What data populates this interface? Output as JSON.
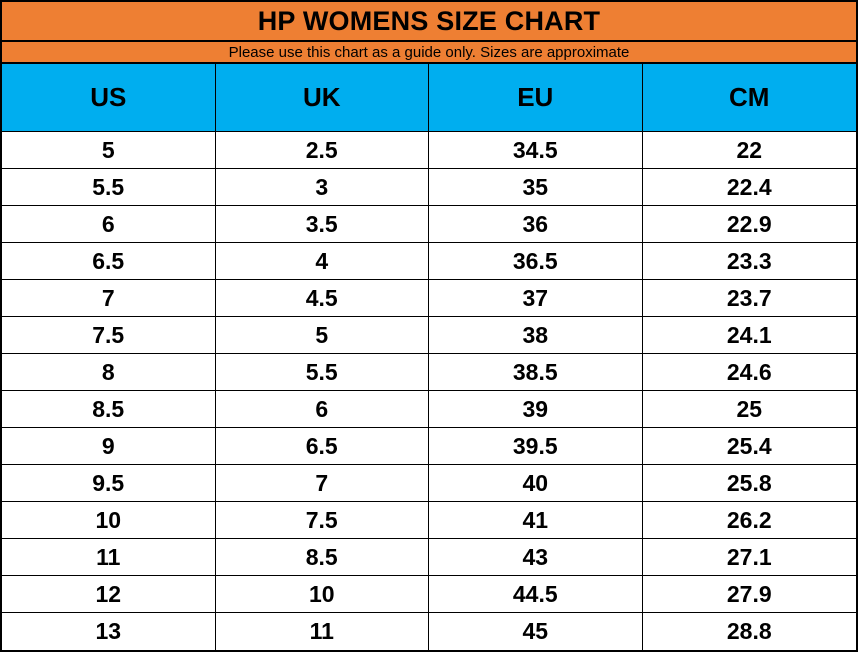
{
  "title": "HP WOMENS SIZE CHART",
  "subtitle": "Please use this chart as a guide only. Sizes are approximate",
  "colors": {
    "title_band_orange": "#EE7F33",
    "header_blue": "#00AEEF",
    "row_background": "#FFFFFF",
    "border_black": "#000000",
    "text_black": "#000000"
  },
  "chart_data": {
    "type": "table",
    "title": "HP WOMENS SIZE CHART",
    "subtitle": "Please use this chart as a guide only. Sizes are approximate",
    "columns": [
      "US",
      "UK",
      "EU",
      "CM"
    ],
    "rows": [
      [
        "5",
        "2.5",
        "34.5",
        "22"
      ],
      [
        "5.5",
        "3",
        "35",
        "22.4"
      ],
      [
        "6",
        "3.5",
        "36",
        "22.9"
      ],
      [
        "6.5",
        "4",
        "36.5",
        "23.3"
      ],
      [
        "7",
        "4.5",
        "37",
        "23.7"
      ],
      [
        "7.5",
        "5",
        "38",
        "24.1"
      ],
      [
        "8",
        "5.5",
        "38.5",
        "24.6"
      ],
      [
        "8.5",
        "6",
        "39",
        "25"
      ],
      [
        "9",
        "6.5",
        "39.5",
        "25.4"
      ],
      [
        "9.5",
        "7",
        "40",
        "25.8"
      ],
      [
        "10",
        "7.5",
        "41",
        "26.2"
      ],
      [
        "11",
        "8.5",
        "43",
        "27.1"
      ],
      [
        "12",
        "10",
        "44.5",
        "27.9"
      ],
      [
        "13",
        "11",
        "45",
        "28.8"
      ]
    ]
  }
}
